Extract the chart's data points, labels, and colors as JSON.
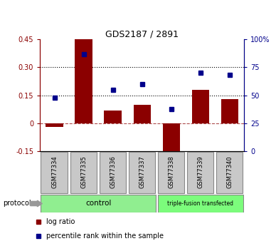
{
  "title": "GDS2187 / 2891",
  "samples": [
    "GSM77334",
    "GSM77335",
    "GSM77336",
    "GSM77337",
    "GSM77338",
    "GSM77339",
    "GSM77340"
  ],
  "log_ratio": [
    -0.02,
    0.45,
    0.07,
    0.1,
    -0.18,
    0.18,
    0.13
  ],
  "percentile_rank": [
    48,
    87,
    55,
    60,
    38,
    70,
    68
  ],
  "ylim_left": [
    -0.15,
    0.45
  ],
  "ylim_right": [
    0,
    100
  ],
  "yticks_left": [
    -0.15,
    0.0,
    0.15,
    0.3,
    0.45
  ],
  "yticks_right": [
    0,
    25,
    50,
    75,
    100
  ],
  "ytick_labels_left": [
    "-0.15",
    "0",
    "0.15",
    "0.30",
    "0.45"
  ],
  "ytick_labels_right": [
    "0",
    "25",
    "50",
    "75",
    "100%"
  ],
  "hlines": [
    0.15,
    0.3
  ],
  "bar_color": "#8B0000",
  "square_color": "#00008B",
  "control_group": [
    0,
    1,
    2,
    3
  ],
  "triple_fusion_group": [
    4,
    5,
    6
  ],
  "control_label": "control",
  "triple_label": "triple-fusion transfected",
  "control_color": "#90EE90",
  "triple_color": "#7CFC7C",
  "protocol_label": "protocol",
  "legend_log_ratio": "log ratio",
  "legend_percentile": "percentile rank within the sample",
  "bg_color": "#C8C8C8"
}
